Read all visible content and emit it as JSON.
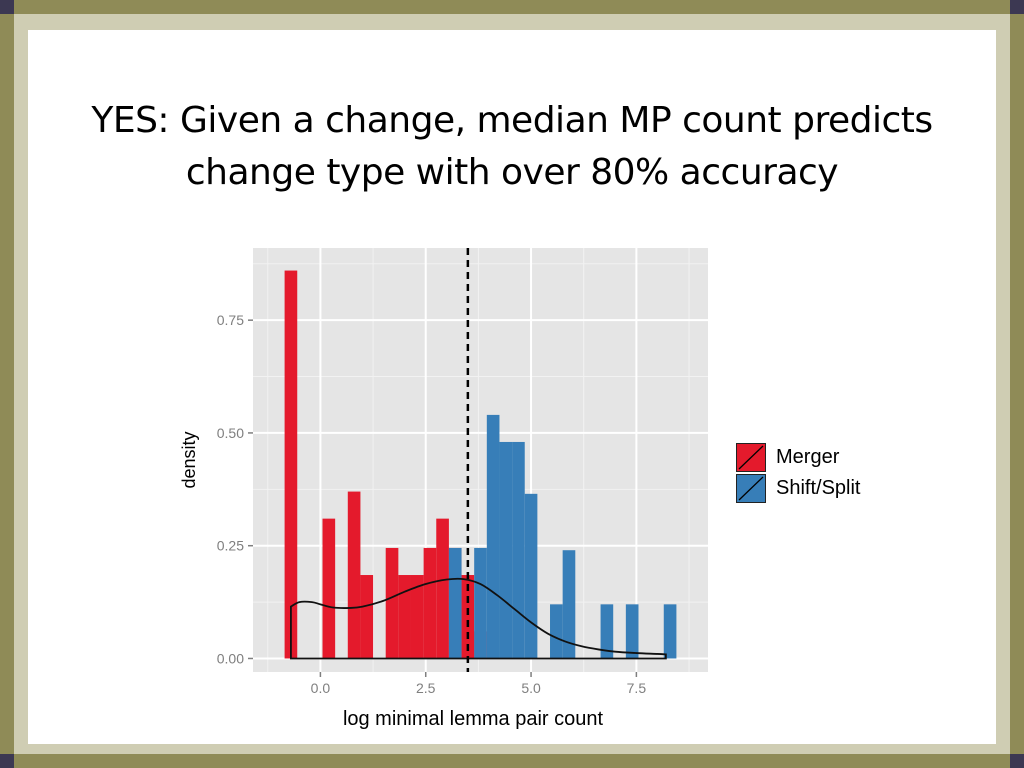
{
  "slide": {
    "title_line1": "YES: Given a change, median MP count predicts",
    "title_line2": "change type with over 80% accuracy"
  },
  "colors": {
    "frame_outer": "#8f8b57",
    "frame_inner": "#cfcdb3",
    "panel_bg": "#e5e5e5",
    "merger": "#e41a2c",
    "shift_split": "#377eb8"
  },
  "chart_data": {
    "type": "bar",
    "subtype": "histogram with density curve",
    "xlabel": "log minimal lemma pair count",
    "ylabel": "density",
    "xlim": [
      -1.6,
      9.2
    ],
    "ylim": [
      -0.03,
      0.91
    ],
    "x_ticks": [
      {
        "value": 0.0,
        "label": "0.0"
      },
      {
        "value": 2.5,
        "label": "2.5"
      },
      {
        "value": 5.0,
        "label": "5.0"
      },
      {
        "value": 7.5,
        "label": "7.5"
      }
    ],
    "y_ticks": [
      {
        "value": 0.0,
        "label": "0.00"
      },
      {
        "value": 0.25,
        "label": "0.25"
      },
      {
        "value": 0.5,
        "label": "0.50"
      },
      {
        "value": 0.75,
        "label": "0.75"
      }
    ],
    "bin_width": 0.3,
    "series": [
      {
        "name": "Merger",
        "color": "#e41a2c",
        "bins": [
          {
            "x0": -0.85,
            "y": 0.86
          },
          {
            "x0": -0.55,
            "y": 0.0
          },
          {
            "x0": -0.25,
            "y": 0.0
          },
          {
            "x0": 0.05,
            "y": 0.31
          },
          {
            "x0": 0.35,
            "y": 0.0
          },
          {
            "x0": 0.65,
            "y": 0.37
          },
          {
            "x0": 0.95,
            "y": 0.185
          },
          {
            "x0": 1.25,
            "y": 0.0
          },
          {
            "x0": 1.55,
            "y": 0.245
          },
          {
            "x0": 1.85,
            "y": 0.185
          },
          {
            "x0": 2.15,
            "y": 0.185
          },
          {
            "x0": 2.45,
            "y": 0.245
          },
          {
            "x0": 2.75,
            "y": 0.31
          },
          {
            "x0": 3.05,
            "y": 0.245
          },
          {
            "x0": 3.35,
            "y": 0.185
          },
          {
            "x0": 3.65,
            "y": 0.06
          }
        ]
      },
      {
        "name": "Shift/Split",
        "color": "#377eb8",
        "bins": [
          {
            "x0": 3.05,
            "y": 0.245
          },
          {
            "x0": 3.35,
            "y": 0.0
          },
          {
            "x0": 3.65,
            "y": 0.245
          },
          {
            "x0": 3.95,
            "y": 0.54
          },
          {
            "x0": 4.25,
            "y": 0.48
          },
          {
            "x0": 4.55,
            "y": 0.48
          },
          {
            "x0": 4.85,
            "y": 0.365
          },
          {
            "x0": 5.15,
            "y": 0.0
          },
          {
            "x0": 5.45,
            "y": 0.12
          },
          {
            "x0": 5.75,
            "y": 0.24
          },
          {
            "x0": 6.05,
            "y": 0.0
          },
          {
            "x0": 6.35,
            "y": 0.0
          },
          {
            "x0": 6.65,
            "y": 0.12
          },
          {
            "x0": 6.95,
            "y": 0.0
          },
          {
            "x0": 7.25,
            "y": 0.12
          },
          {
            "x0": 7.55,
            "y": 0.0
          },
          {
            "x0": 7.85,
            "y": 0.0
          },
          {
            "x0": 8.15,
            "y": 0.12
          }
        ]
      }
    ],
    "density_curve": {
      "x": [
        -0.7,
        -0.7,
        -0.5,
        -0.2,
        0.0,
        0.3,
        0.7,
        1.0,
        1.5,
        2.0,
        2.5,
        3.0,
        3.4,
        3.8,
        4.2,
        4.6,
        5.0,
        5.4,
        5.8,
        6.2,
        6.6,
        7.0,
        7.5,
        8.0,
        8.2,
        8.2
      ],
      "y": [
        0.0,
        0.115,
        0.125,
        0.125,
        0.12,
        0.113,
        0.112,
        0.115,
        0.128,
        0.148,
        0.165,
        0.175,
        0.176,
        0.165,
        0.14,
        0.11,
        0.08,
        0.055,
        0.038,
        0.027,
        0.02,
        0.015,
        0.012,
        0.01,
        0.009,
        0.0
      ]
    },
    "median_line": {
      "x": 3.5,
      "style": "dashed"
    },
    "legend": {
      "position": "right",
      "entries": [
        "Merger",
        "Shift/Split"
      ]
    }
  }
}
